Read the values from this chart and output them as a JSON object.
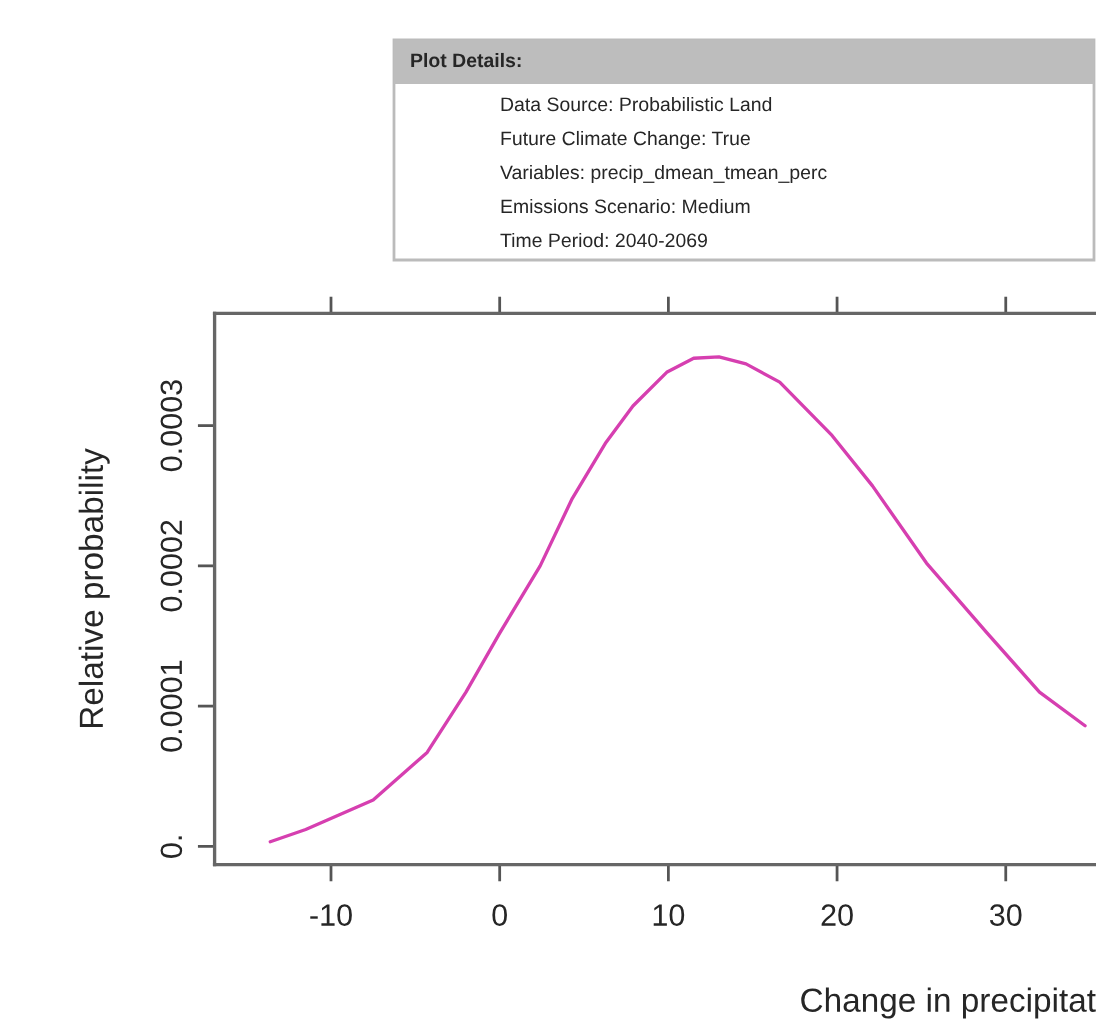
{
  "chart_data": {
    "type": "line",
    "title": "Plot Details:",
    "annotations": [
      "Data Source: Probabilistic Land",
      "Future Climate Change: True",
      "Variables: precip_dmean_tmean_perc",
      "Emissions Scenario: Medium",
      "Time Period: 2040-2069"
    ],
    "xlabel": "Change in precipitat",
    "ylabel": "Relative probability",
    "x": [
      -13.6,
      -11.5,
      -7.5,
      -4.3,
      -2.0,
      0,
      2.4,
      4.3,
      6.3,
      7.9,
      9.9,
      11.5,
      13.0,
      14.6,
      16.6,
      19.7,
      22.1,
      25.3,
      28.9,
      32.0,
      34.7
    ],
    "series": [
      {
        "color": "#d63fb0",
        "values": [
          3.3e-06,
          1.2e-05,
          3.3e-05,
          6.7e-05,
          0.00011,
          0.000152,
          0.0002,
          0.000248,
          0.000288,
          0.000314,
          0.000338,
          0.000348,
          0.000349,
          0.000344,
          0.000331,
          0.000293,
          0.000257,
          0.000202,
          0.000152,
          0.00011,
          8.6e-05
        ]
      }
    ],
    "xlim": [
      -16.9,
      35.35
    ],
    "xticks": [
      -10,
      0,
      10,
      20,
      30
    ],
    "ylim": [
      -1.3e-05,
      0.00038
    ],
    "yticks": [
      {
        "value": 0,
        "label": "0."
      },
      0.0001,
      0.0002,
      0.0003
    ],
    "grid": false,
    "legend": false,
    "marker": "none",
    "line_style": "solid"
  }
}
